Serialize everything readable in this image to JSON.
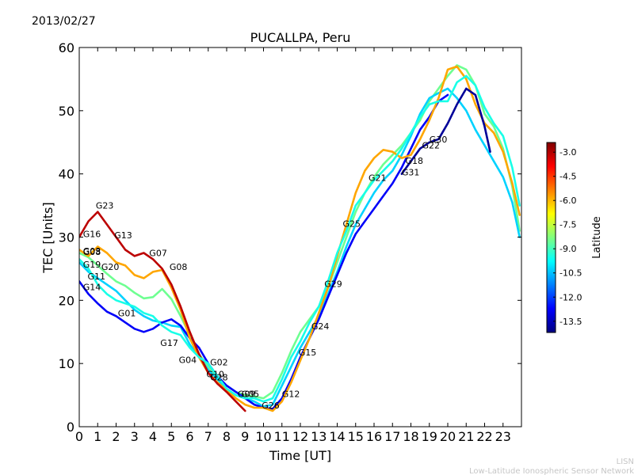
{
  "date": "2013/02/27",
  "credit": {
    "line1": "LISN",
    "line2": "Low-Latitude Ionospheric Sensor Network"
  },
  "chart_data": {
    "type": "line",
    "title": "PUCALLPA, Peru",
    "xlabel": "Time [UT]",
    "ylabel": "TEC [Units]",
    "xlim": [
      0,
      24
    ],
    "ylim": [
      0,
      60
    ],
    "xticks": [
      0,
      1,
      2,
      3,
      4,
      5,
      6,
      7,
      8,
      9,
      10,
      11,
      12,
      13,
      14,
      15,
      16,
      17,
      18,
      19,
      20,
      21,
      22,
      23
    ],
    "yticks": [
      0,
      10,
      20,
      30,
      40,
      50,
      60
    ],
    "grid": false,
    "colorbar": {
      "label": "Latitude",
      "range": [
        -14.2,
        -2.4
      ],
      "ticks": [
        "-3.0",
        "-4.5",
        "-6.0",
        "-7.5",
        "-9.0",
        "-10.5",
        "-12.0",
        "-13.5"
      ],
      "colormap": "jet"
    },
    "prn_labels": [
      {
        "text": "G23",
        "x": 0.9,
        "y": 34.5
      },
      {
        "text": "G16",
        "x": 0.2,
        "y": 30.0
      },
      {
        "text": "G13",
        "x": 1.9,
        "y": 29.8
      },
      {
        "text": "G03",
        "x": 0.2,
        "y": 27.3
      },
      {
        "text": "G08",
        "x": 0.2,
        "y": 27.2
      },
      {
        "text": "G07",
        "x": 3.8,
        "y": 27.0
      },
      {
        "text": "G19",
        "x": 0.2,
        "y": 25.2
      },
      {
        "text": "G20",
        "x": 1.2,
        "y": 24.8
      },
      {
        "text": "G08",
        "x": 4.9,
        "y": 24.8
      },
      {
        "text": "G11",
        "x": 0.45,
        "y": 23.3
      },
      {
        "text": "G14",
        "x": 0.2,
        "y": 21.6
      },
      {
        "text": "G01",
        "x": 2.1,
        "y": 17.5
      },
      {
        "text": "G17",
        "x": 4.4,
        "y": 12.8
      },
      {
        "text": "G04",
        "x": 5.4,
        "y": 10.1
      },
      {
        "text": "G02",
        "x": 7.1,
        "y": 9.7
      },
      {
        "text": "G10",
        "x": 6.9,
        "y": 7.8
      },
      {
        "text": "G28",
        "x": 7.1,
        "y": 7.3
      },
      {
        "text": "G09",
        "x": 8.6,
        "y": 4.7
      },
      {
        "text": "G05",
        "x": 8.8,
        "y": 4.7
      },
      {
        "text": "G12",
        "x": 11.0,
        "y": 4.7
      },
      {
        "text": "G26",
        "x": 9.9,
        "y": 2.9
      },
      {
        "text": "G15",
        "x": 11.9,
        "y": 11.3
      },
      {
        "text": "G24",
        "x": 12.6,
        "y": 15.4
      },
      {
        "text": "G29",
        "x": 13.3,
        "y": 22.1
      },
      {
        "text": "G25",
        "x": 14.3,
        "y": 31.6
      },
      {
        "text": "G21",
        "x": 15.7,
        "y": 38.9
      },
      {
        "text": "G18",
        "x": 17.7,
        "y": 41.6
      },
      {
        "text": "G31",
        "x": 17.5,
        "y": 39.8
      },
      {
        "text": "G22",
        "x": 18.6,
        "y": 44.0
      },
      {
        "text": "G30",
        "x": 19.0,
        "y": 45.0
      }
    ],
    "series": [
      {
        "values": [
          [
            0.0,
            27.5
          ],
          [
            0.5,
            26.8
          ],
          [
            1.0,
            25.5
          ],
          [
            1.5,
            24.2
          ],
          [
            2.0,
            23.0
          ],
          [
            2.5,
            22.3
          ],
          [
            3.0,
            21.2
          ],
          [
            3.5,
            20.3
          ],
          [
            4.0,
            20.5
          ],
          [
            4.5,
            21.8
          ],
          [
            5.0,
            20.2
          ],
          [
            5.5,
            17.5
          ],
          [
            6.0,
            14.5
          ],
          [
            6.5,
            11.5
          ],
          [
            7.0,
            9.5
          ],
          [
            7.5,
            7.8
          ],
          [
            8.0,
            6.5
          ],
          [
            8.5,
            5.5
          ],
          [
            9.0,
            5.0
          ],
          [
            9.5,
            4.8
          ],
          [
            10.0,
            4.5
          ],
          [
            10.5,
            5.5
          ],
          [
            11.0,
            8.5
          ],
          [
            11.5,
            12.0
          ],
          [
            12.0,
            15.0
          ],
          [
            12.5,
            17.0
          ],
          [
            13.0,
            19.0
          ],
          [
            13.5,
            22.0
          ],
          [
            14.0,
            26.0
          ],
          [
            14.5,
            30.0
          ],
          [
            15.0,
            34.0
          ],
          [
            15.5,
            37.0
          ],
          [
            16.0,
            39.5
          ],
          [
            16.5,
            41.5
          ],
          [
            17.0,
            43.0
          ],
          [
            17.5,
            44.5
          ],
          [
            18.0,
            46.5
          ],
          [
            18.5,
            48.5
          ],
          [
            19.0,
            51.5
          ],
          [
            19.5,
            53.5
          ],
          [
            20.0,
            55.5
          ],
          [
            20.5,
            57.2
          ],
          [
            21.0,
            56.5
          ],
          [
            21.5,
            54.0
          ],
          [
            22.0,
            49.5
          ],
          [
            22.5,
            47.5
          ],
          [
            23.0,
            44.0
          ],
          [
            23.5,
            38.0
          ],
          [
            23.9,
            31.0
          ]
        ],
        "lat": -8.5
      },
      {
        "values": [
          [
            0.0,
            26.0
          ],
          [
            0.5,
            24.5
          ],
          [
            1.0,
            23.5
          ],
          [
            1.5,
            22.5
          ],
          [
            2.0,
            21.5
          ],
          [
            2.5,
            20.0
          ],
          [
            3.0,
            18.5
          ],
          [
            3.5,
            17.5
          ],
          [
            4.0,
            16.8
          ],
          [
            4.5,
            16.5
          ],
          [
            5.0,
            16.0
          ],
          [
            5.5,
            15.8
          ],
          [
            6.0,
            13.0
          ],
          [
            6.5,
            11.0
          ],
          [
            7.0,
            9.0
          ],
          [
            7.5,
            7.5
          ],
          [
            8.0,
            6.0
          ],
          [
            8.5,
            5.0
          ],
          [
            9.0,
            4.5
          ],
          [
            9.5,
            4.0
          ],
          [
            10.0,
            3.2
          ],
          [
            10.5,
            3.5
          ],
          [
            11.0,
            6.5
          ],
          [
            11.5,
            9.5
          ],
          [
            12.0,
            12.5
          ],
          [
            12.5,
            15.0
          ],
          [
            13.0,
            17.5
          ],
          [
            13.5,
            21.0
          ],
          [
            14.0,
            24.5
          ],
          [
            14.5,
            28.5
          ],
          [
            15.0,
            32.0
          ],
          [
            15.5,
            34.5
          ],
          [
            16.0,
            37.0
          ],
          [
            16.5,
            39.0
          ],
          [
            17.0,
            40.5
          ],
          [
            17.5,
            43.0
          ],
          [
            18.0,
            46.0
          ],
          [
            18.5,
            49.5
          ],
          [
            19.0,
            52.0
          ],
          [
            19.5,
            52.8
          ],
          [
            20.0,
            53.5
          ],
          [
            20.5,
            52.0
          ],
          [
            21.0,
            50.0
          ],
          [
            21.5,
            47.0
          ],
          [
            22.0,
            44.5
          ],
          [
            22.5,
            42.0
          ],
          [
            23.0,
            39.5
          ],
          [
            23.5,
            35.5
          ],
          [
            23.9,
            30.0
          ]
        ],
        "lat": -10.3
      },
      {
        "values": [
          [
            0.0,
            23.0
          ],
          [
            0.5,
            21.0
          ],
          [
            1.0,
            19.5
          ],
          [
            1.5,
            18.2
          ],
          [
            2.0,
            17.5
          ],
          [
            2.5,
            16.5
          ],
          [
            3.0,
            15.5
          ],
          [
            3.5,
            15.0
          ],
          [
            4.0,
            15.5
          ],
          [
            4.5,
            16.5
          ],
          [
            5.0,
            17.0
          ],
          [
            5.5,
            16.0
          ],
          [
            6.0,
            14.0
          ],
          [
            6.5,
            12.5
          ],
          [
            7.0,
            10.0
          ],
          [
            7.5,
            8.0
          ],
          [
            8.0,
            6.5
          ],
          [
            8.5,
            5.5
          ],
          [
            9.0,
            4.5
          ],
          [
            9.5,
            3.5
          ],
          [
            10.0,
            3.0
          ],
          [
            10.5,
            2.8
          ],
          [
            11.0,
            4.5
          ],
          [
            11.5,
            7.5
          ],
          [
            12.0,
            11.0
          ],
          [
            12.5,
            14.0
          ],
          [
            13.0,
            17.0
          ],
          [
            13.5,
            20.5
          ],
          [
            14.0,
            24.0
          ],
          [
            14.5,
            27.5
          ],
          [
            15.0,
            30.5
          ],
          [
            15.5,
            32.5
          ],
          [
            16.0,
            34.5
          ],
          [
            16.5,
            36.5
          ],
          [
            17.0,
            38.5
          ],
          [
            17.5,
            41.0
          ],
          [
            18.0,
            44.0
          ],
          [
            18.5,
            47.0
          ],
          [
            19.0,
            49.0
          ],
          [
            19.5,
            51.5
          ],
          [
            20.0,
            52.5
          ]
        ],
        "lat": -12.8
      },
      {
        "values": [
          [
            0.0,
            28.0
          ],
          [
            0.5,
            27.0
          ],
          [
            1.0,
            28.5
          ],
          [
            1.5,
            27.5
          ],
          [
            2.0,
            26.0
          ],
          [
            2.5,
            25.5
          ],
          [
            3.0,
            24.0
          ],
          [
            3.5,
            23.5
          ],
          [
            4.0,
            24.5
          ],
          [
            4.5,
            24.8
          ],
          [
            5.0,
            22.0
          ],
          [
            5.5,
            18.5
          ],
          [
            6.0,
            14.0
          ],
          [
            6.5,
            11.0
          ],
          [
            7.0,
            8.5
          ],
          [
            7.5,
            7.0
          ],
          [
            8.0,
            5.8
          ],
          [
            8.5,
            4.5
          ],
          [
            9.0,
            3.5
          ],
          [
            9.5,
            3.0
          ],
          [
            10.0,
            3.0
          ],
          [
            10.5,
            2.5
          ],
          [
            11.0,
            4.0
          ],
          [
            11.5,
            7.0
          ],
          [
            12.0,
            10.5
          ],
          [
            12.5,
            14.0
          ],
          [
            13.0,
            18.0
          ],
          [
            13.5,
            22.0
          ],
          [
            14.0,
            27.0
          ],
          [
            14.5,
            32.0
          ],
          [
            15.0,
            37.0
          ],
          [
            15.5,
            40.5
          ],
          [
            16.0,
            42.5
          ],
          [
            16.5,
            43.8
          ],
          [
            17.0,
            43.5
          ],
          [
            17.5,
            42.5
          ],
          [
            18.0,
            43.0
          ],
          [
            18.5,
            45.5
          ],
          [
            19.0,
            48.5
          ],
          [
            19.5,
            52.0
          ],
          [
            20.0,
            56.5
          ],
          [
            20.5,
            57.0
          ],
          [
            21.0,
            55.0
          ],
          [
            21.5,
            51.0
          ],
          [
            22.0,
            48.0
          ],
          [
            22.5,
            46.5
          ],
          [
            23.0,
            43.5
          ],
          [
            23.5,
            38.5
          ],
          [
            23.9,
            33.5
          ]
        ],
        "lat": -5.8
      },
      {
        "values": [
          [
            0.0,
            30.0
          ],
          [
            0.5,
            32.5
          ],
          [
            1.0,
            34.0
          ],
          [
            1.5,
            32.0
          ],
          [
            2.0,
            30.0
          ],
          [
            2.5,
            28.0
          ],
          [
            3.0,
            27.0
          ],
          [
            3.5,
            27.5
          ],
          [
            4.0,
            26.5
          ],
          [
            4.5,
            25.0
          ],
          [
            5.0,
            22.5
          ],
          [
            5.5,
            19.0
          ],
          [
            6.0,
            15.0
          ],
          [
            6.5,
            11.5
          ],
          [
            7.0,
            8.5
          ],
          [
            7.5,
            6.8
          ],
          [
            8.0,
            5.5
          ],
          [
            8.5,
            4.0
          ],
          [
            9.0,
            2.5
          ]
        ],
        "lat": -3.1
      },
      {
        "values": [
          [
            0.0,
            26.5
          ],
          [
            0.5,
            25.0
          ],
          [
            1.0,
            22.5
          ],
          [
            1.5,
            21.0
          ],
          [
            2.0,
            20.0
          ],
          [
            2.5,
            19.5
          ],
          [
            3.0,
            19.0
          ],
          [
            3.5,
            18.0
          ],
          [
            4.0,
            17.5
          ],
          [
            4.5,
            16.0
          ],
          [
            5.0,
            15.0
          ],
          [
            5.5,
            14.5
          ],
          [
            6.0,
            12.5
          ],
          [
            6.5,
            11.0
          ],
          [
            7.0,
            10.0
          ],
          [
            7.5,
            8.0
          ],
          [
            8.0,
            6.0
          ],
          [
            8.5,
            5.0
          ],
          [
            9.0,
            4.5
          ],
          [
            9.5,
            4.5
          ],
          [
            10.0,
            4.0
          ],
          [
            10.5,
            4.5
          ],
          [
            11.0,
            7.5
          ],
          [
            11.5,
            11.0
          ],
          [
            12.0,
            13.5
          ],
          [
            12.5,
            16.5
          ],
          [
            13.0,
            19.0
          ],
          [
            13.5,
            23.0
          ],
          [
            14.0,
            27.5
          ],
          [
            14.5,
            31.0
          ],
          [
            15.0,
            35.0
          ],
          [
            15.5,
            37.0
          ],
          [
            16.0,
            39.0
          ],
          [
            16.5,
            40.5
          ],
          [
            17.0,
            42.0
          ],
          [
            17.5,
            44.0
          ],
          [
            18.0,
            46.5
          ],
          [
            18.5,
            49.0
          ],
          [
            19.0,
            51.0
          ],
          [
            19.5,
            51.5
          ],
          [
            20.0,
            51.5
          ],
          [
            20.5,
            54.5
          ],
          [
            21.0,
            55.5
          ],
          [
            21.5,
            54.0
          ],
          [
            22.0,
            50.5
          ],
          [
            22.5,
            48.0
          ],
          [
            23.0,
            46.0
          ],
          [
            23.5,
            41.0
          ],
          [
            23.9,
            35.0
          ]
        ],
        "lat": -9.5
      },
      {
        "values": [
          [
            17.5,
            40.0
          ],
          [
            18.0,
            42.0
          ],
          [
            18.5,
            44.0
          ],
          [
            19.0,
            45.0
          ],
          [
            19.5,
            45.5
          ],
          [
            20.0,
            48.0
          ],
          [
            20.5,
            51.0
          ],
          [
            21.0,
            53.5
          ],
          [
            21.5,
            52.5
          ],
          [
            22.0,
            47.5
          ],
          [
            22.3,
            43.5
          ]
        ],
        "lat": -13.9
      }
    ]
  }
}
